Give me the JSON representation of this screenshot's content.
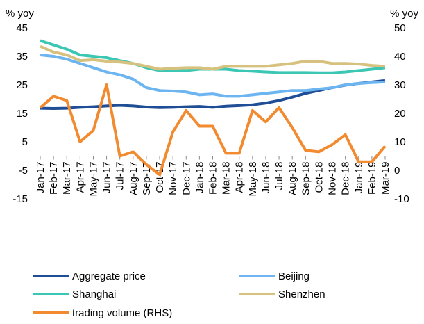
{
  "chart_data": {
    "type": "line",
    "ylabel": "% yoy",
    "y2label": "% yoy",
    "categories": [
      "Jan-17",
      "Feb-17",
      "Mar-17",
      "Apr-17",
      "May-17",
      "Jun-17",
      "Jul-17",
      "Aug-17",
      "Sep-17",
      "Oct-17",
      "Nov-17",
      "Dec-17",
      "Jan-18",
      "Feb-18",
      "Mar-18",
      "Apr-18",
      "May-18",
      "Jun-18",
      "Jul-18",
      "Aug-18",
      "Sep-18",
      "Oct-18",
      "Nov-18",
      "Dec-18",
      "Jan-19",
      "Feb-19",
      "Mar-19"
    ],
    "ylim": [
      -15,
      45
    ],
    "yticks": [
      -15,
      -5,
      5,
      15,
      25,
      35,
      45
    ],
    "y2lim": [
      -10,
      50
    ],
    "y2ticks": [
      -10,
      0,
      10,
      20,
      30,
      40,
      50
    ],
    "series": [
      {
        "name": "Aggregate price",
        "color": "#1f4e96",
        "values": [
          16.8,
          16.7,
          16.8,
          17.1,
          17.3,
          17.6,
          17.8,
          17.6,
          17.2,
          17.0,
          17.1,
          17.3,
          17.4,
          17.1,
          17.5,
          17.7,
          18.0,
          18.6,
          19.5,
          20.7,
          22.0,
          23.0,
          24.0,
          24.9,
          25.5,
          26.0,
          26.5
        ]
      },
      {
        "name": "Beijing",
        "color": "#6cb5f0",
        "values": [
          35.5,
          35.0,
          34.0,
          32.5,
          31.0,
          29.5,
          28.5,
          27.0,
          24.0,
          23.0,
          22.8,
          22.5,
          21.5,
          21.8,
          21.0,
          21.0,
          21.5,
          22.0,
          22.5,
          23.0,
          23.0,
          23.5,
          24.0,
          25.0,
          25.5,
          25.8,
          26.0
        ]
      },
      {
        "name": "Shanghai",
        "color": "#3cc6b4",
        "values": [
          40.5,
          39.0,
          37.5,
          35.5,
          35.0,
          34.5,
          33.5,
          32.5,
          31.0,
          30.0,
          30.0,
          30.0,
          30.5,
          30.5,
          30.5,
          30.0,
          29.8,
          29.5,
          29.3,
          29.3,
          29.3,
          29.2,
          29.2,
          29.5,
          30.0,
          30.5,
          31.0
        ]
      },
      {
        "name": "Shenzhen",
        "color": "#d6c27e",
        "values": [
          38.5,
          36.5,
          35.5,
          33.5,
          33.8,
          33.3,
          33.0,
          32.5,
          31.5,
          30.5,
          30.8,
          31.0,
          31.0,
          30.5,
          31.5,
          31.5,
          31.5,
          31.5,
          32.0,
          32.5,
          33.3,
          33.3,
          32.5,
          32.5,
          32.3,
          31.8,
          31.5
        ]
      },
      {
        "name": "trading volume (RHS)",
        "color": "#f28a30",
        "axis": "y2",
        "values": [
          22,
          26,
          24.5,
          10,
          14,
          30,
          5,
          6.5,
          2,
          -1.5,
          13.5,
          21,
          15.5,
          15.5,
          6,
          6,
          21,
          17,
          22,
          15,
          7,
          6.5,
          9,
          12.5,
          3,
          3,
          8.5
        ]
      }
    ]
  }
}
